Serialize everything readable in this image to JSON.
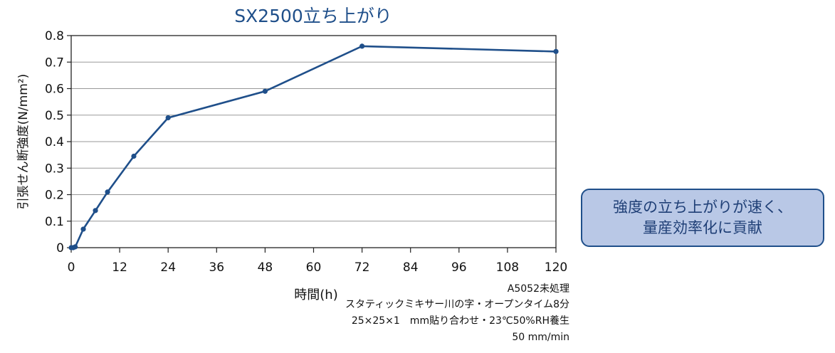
{
  "chart_data": {
    "type": "line",
    "title": "SX2500立ち上がり",
    "xlabel": "時間(h)",
    "ylabel": "引張せん断強度(N/mm²)",
    "x_ticks": [
      "0",
      "12",
      "24",
      "36",
      "48",
      "60",
      "72",
      "84",
      "96",
      "108",
      "120"
    ],
    "y_ticks": [
      "0",
      "0.1",
      "0.2",
      "0.3",
      "0.4",
      "0.5",
      "0.6",
      "0.7",
      "0.8"
    ],
    "xlim": [
      0,
      120
    ],
    "ylim": [
      0,
      0.8
    ],
    "grid": "horizontal",
    "series": [
      {
        "x": [
          0,
          0.5,
          1,
          3,
          6,
          9,
          15.5,
          24,
          48,
          72,
          120
        ],
        "y": [
          0,
          0,
          0.003,
          0.07,
          0.14,
          0.21,
          0.345,
          0.49,
          0.59,
          0.76,
          0.74
        ],
        "color": "#1f4f8a"
      }
    ],
    "annotations": [
      "A5052未処理",
      "スタティックミキサー川の字・オープンタイム8分",
      "25×25×1　mm貼り合わせ・23℃50%RH養生",
      "50 mm/min"
    ]
  },
  "callout": {
    "line1": "強度の立ち上がりが速く、",
    "line2": "量産効率化に貢献"
  },
  "colors": {
    "line": "#1f4f8a",
    "callout_bg": "#b9c8e6",
    "callout_border": "#1f4f8a",
    "grid": "#999999"
  }
}
